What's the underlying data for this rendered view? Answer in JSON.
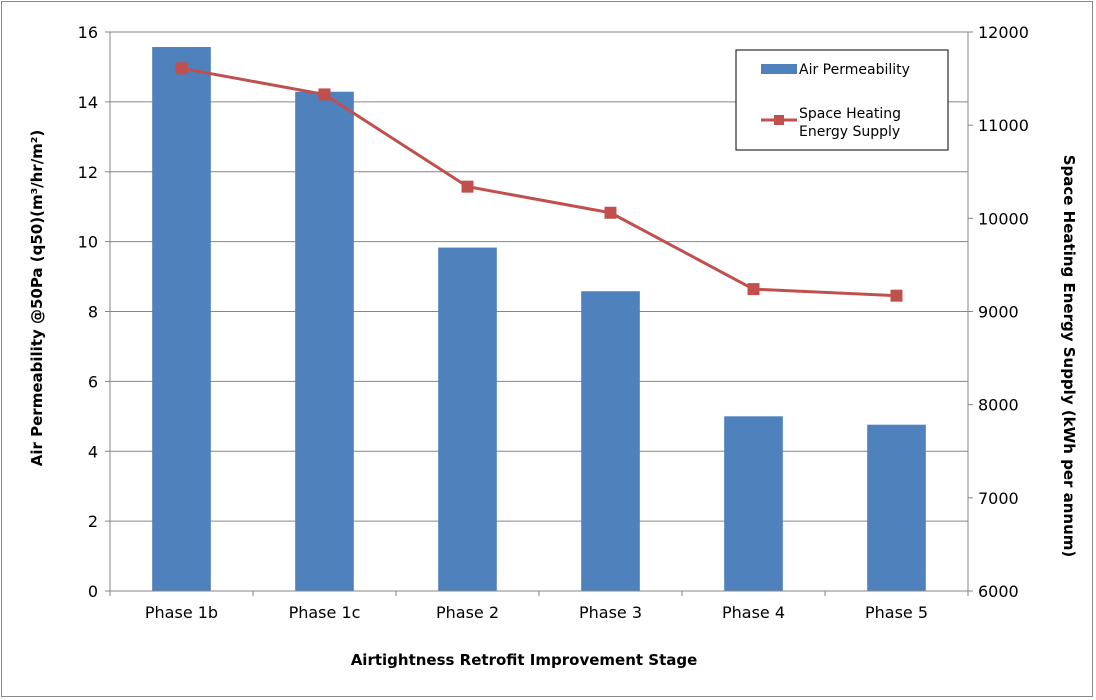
{
  "chart_data": {
    "type": "bar",
    "categories": [
      "Phase 1b",
      "Phase 1c",
      "Phase 2",
      "Phase 3",
      "Phase 4",
      "Phase 5"
    ],
    "series": [
      {
        "name": "Air Permeability",
        "type": "bar",
        "axis": "left",
        "color": "#4f81bd",
        "values": [
          15.57,
          14.29,
          9.83,
          8.58,
          5.0,
          4.76
        ]
      },
      {
        "name": "Space Heating Energy Supply",
        "type": "line",
        "axis": "right",
        "color": "#c0504d",
        "marker": "square",
        "values": [
          11610,
          11330,
          10340,
          10060,
          9240,
          9170
        ]
      }
    ],
    "xlabel": "Airtightness Retrofit Improvement Stage",
    "ylabel": "Air Permeability @50Pa (q50)(m³/hr/m²)",
    "y2label": "Space Heating Energy Supply (kWh per annum)",
    "ylim": [
      0,
      16
    ],
    "yticks": [
      "0",
      "2",
      "4",
      "6",
      "8",
      "10",
      "12",
      "14",
      "16"
    ],
    "y2lim": [
      6000,
      12000
    ],
    "y2ticks": [
      "6000",
      "7000",
      "8000",
      "9000",
      "10000",
      "11000",
      "12000"
    ],
    "grid": "horizontal",
    "legend": {
      "position": "top-right",
      "entries": [
        "Air Permeability",
        "Space Heating Energy Supply"
      ],
      "entry_lines": [
        [
          "Air Permeability"
        ],
        [
          "Space Heating",
          "Energy Supply"
        ]
      ]
    }
  }
}
